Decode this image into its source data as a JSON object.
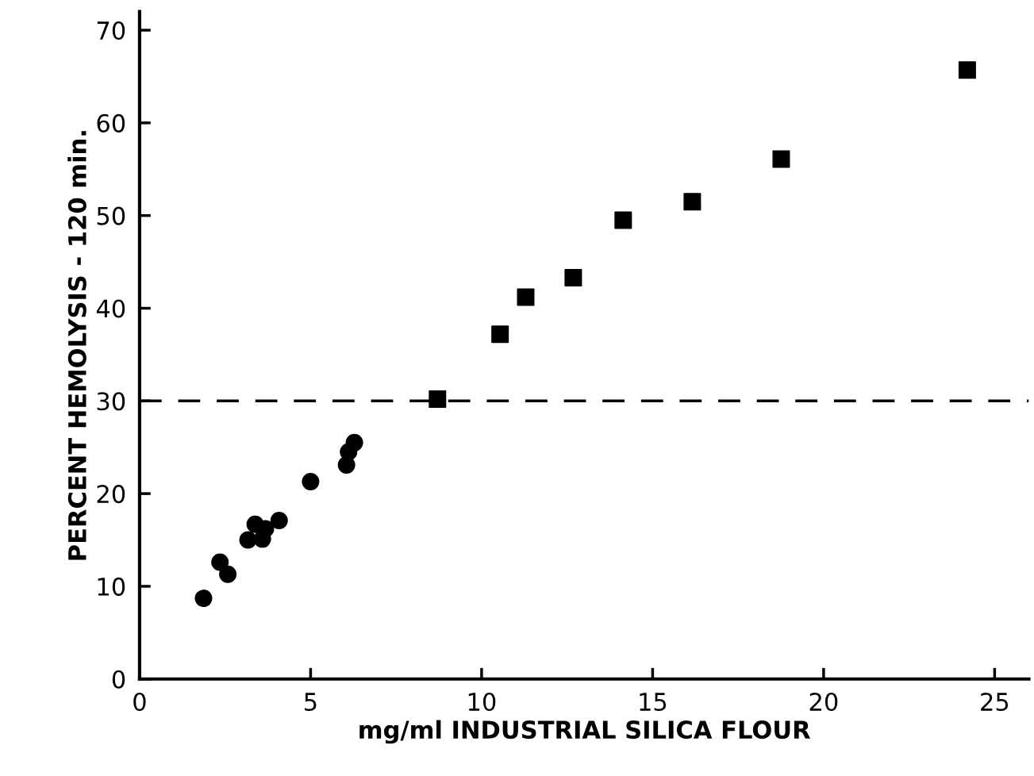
{
  "chart_data": {
    "type": "scatter",
    "xlabel": "mg/ml INDUSTRIAL SILICA FLOUR",
    "ylabel": "PERCENT HEMOLYSIS - 120 min.",
    "series": [
      {
        "color": "#000000",
        "marker": "circle",
        "x": [
          1.87,
          2.35,
          2.58,
          3.17,
          3.38,
          3.59,
          3.68,
          4.08,
          5.0,
          6.05,
          6.11,
          6.28
        ],
        "values": [
          8.7,
          12.6,
          11.3,
          15.0,
          16.7,
          15.1,
          16.2,
          17.1,
          21.3,
          23.1,
          24.5,
          25.5
        ]
      },
      {
        "color": "#000000",
        "marker": "square",
        "x": [
          8.71,
          10.54,
          11.29,
          12.68,
          14.14,
          16.16,
          18.76,
          24.2
        ],
        "values": [
          30.2,
          37.2,
          41.2,
          43.3,
          49.5,
          51.5,
          56.1,
          65.7
        ]
      }
    ],
    "xlim": [
      0,
      26
    ],
    "xticks": [
      0,
      5,
      10,
      15,
      20,
      25
    ],
    "ylim": [
      0,
      72
    ],
    "yticks": [
      0,
      10,
      20,
      30,
      40,
      50,
      60,
      70
    ],
    "ref_lines": [
      {
        "axis": "y",
        "value": 30,
        "color": "#000000",
        "line_style": "dashed"
      }
    ],
    "grid": false,
    "legend": false
  }
}
